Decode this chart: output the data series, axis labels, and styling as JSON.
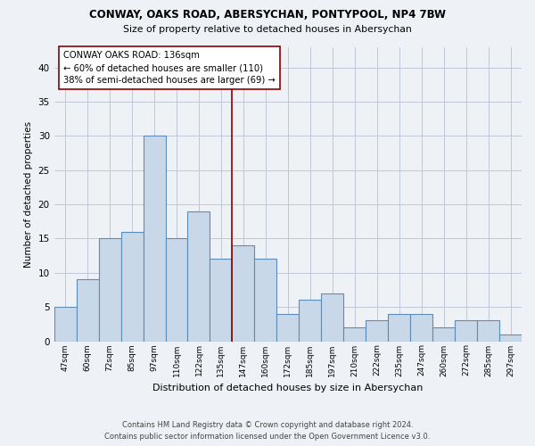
{
  "title1": "CONWAY, OAKS ROAD, ABERSYCHAN, PONTYPOOL, NP4 7BW",
  "title2": "Size of property relative to detached houses in Abersychan",
  "xlabel": "Distribution of detached houses by size in Abersychan",
  "ylabel": "Number of detached properties",
  "footer1": "Contains HM Land Registry data © Crown copyright and database right 2024.",
  "footer2": "Contains public sector information licensed under the Open Government Licence v3.0.",
  "categories": [
    "47sqm",
    "60sqm",
    "72sqm",
    "85sqm",
    "97sqm",
    "110sqm",
    "122sqm",
    "135sqm",
    "147sqm",
    "160sqm",
    "172sqm",
    "185sqm",
    "197sqm",
    "210sqm",
    "222sqm",
    "235sqm",
    "247sqm",
    "260sqm",
    "272sqm",
    "285sqm",
    "297sqm"
  ],
  "values": [
    5,
    9,
    15,
    16,
    30,
    15,
    19,
    12,
    14,
    12,
    4,
    6,
    7,
    2,
    3,
    4,
    4,
    2,
    3,
    3,
    1
  ],
  "bar_color": "#c8d8e8",
  "bar_edge_color": "#5b8db8",
  "vline_x": 7.5,
  "vline_color": "#8b0000",
  "annotation_line1": "CONWAY OAKS ROAD: 136sqm",
  "annotation_line2": "← 60% of detached houses are smaller (110)",
  "annotation_line3": "38% of semi-detached houses are larger (69) →",
  "annotation_box_color": "white",
  "annotation_box_edge_color": "#8b0000",
  "ylim": [
    0,
    43
  ],
  "yticks": [
    0,
    5,
    10,
    15,
    20,
    25,
    30,
    35,
    40
  ],
  "grid_color": "#c0c8d8",
  "bg_color": "#eef2f7"
}
